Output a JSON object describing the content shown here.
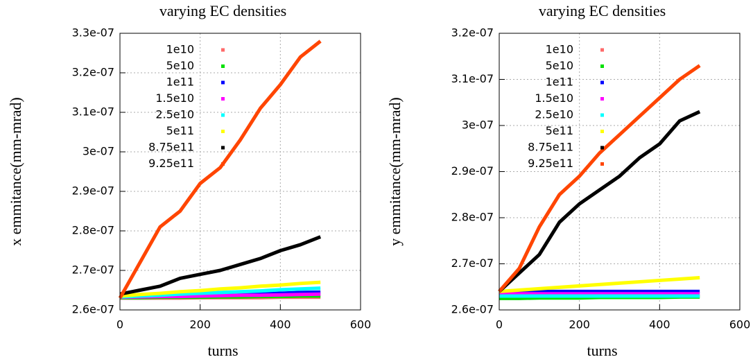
{
  "chart_data": [
    {
      "type": "line",
      "title": "varying EC densities",
      "xlabel": "turns",
      "ylabel": "x emmitance(mm-mrad)",
      "x": [
        0,
        50,
        100,
        150,
        200,
        250,
        300,
        350,
        400,
        450,
        500
      ],
      "xlim": [
        0,
        600
      ],
      "xticks": [
        0,
        200,
        400,
        600
      ],
      "ylim": [
        2.6e-07,
        3.3e-07
      ],
      "yticks": [
        {
          "value": 2.6e-07,
          "label": "2.6e-07"
        },
        {
          "value": 2.7e-07,
          "label": "2.7e-07"
        },
        {
          "value": 2.8e-07,
          "label": "2.8e-07"
        },
        {
          "value": 2.9e-07,
          "label": "2.9e-07"
        },
        {
          "value": 3e-07,
          "label": "3e-07"
        },
        {
          "value": 3.1e-07,
          "label": "3.1e-07"
        },
        {
          "value": 3.2e-07,
          "label": "3.2e-07"
        },
        {
          "value": 3.3e-07,
          "label": "3.3e-07"
        }
      ],
      "grid": true,
      "legend": "upper left",
      "series": [
        {
          "name": "1e10",
          "color": "#ff6a6a",
          "values": [
            2.63e-07,
            2.63e-07,
            2.63e-07,
            2.63e-07,
            2.631e-07,
            2.631e-07,
            2.631e-07,
            2.631e-07,
            2.632e-07,
            2.632e-07,
            2.632e-07
          ]
        },
        {
          "name": "5e10",
          "color": "#00e000",
          "values": [
            2.631e-07,
            2.631e-07,
            2.632e-07,
            2.632e-07,
            2.632e-07,
            2.633e-07,
            2.633e-07,
            2.634e-07,
            2.634e-07,
            2.635e-07,
            2.635e-07
          ]
        },
        {
          "name": "1e11",
          "color": "#0000ff",
          "values": [
            2.633e-07,
            2.634e-07,
            2.635e-07,
            2.636e-07,
            2.638e-07,
            2.639e-07,
            2.64e-07,
            2.641e-07,
            2.642e-07,
            2.644e-07,
            2.645e-07
          ]
        },
        {
          "name": "1.5e10",
          "color": "#ff00ff",
          "values": [
            2.632e-07,
            2.633e-07,
            2.634e-07,
            2.634e-07,
            2.635e-07,
            2.636e-07,
            2.637e-07,
            2.637e-07,
            2.638e-07,
            2.639e-07,
            2.64e-07
          ]
        },
        {
          "name": "2.5e10",
          "color": "#00ffff",
          "values": [
            2.633e-07,
            2.635e-07,
            2.637e-07,
            2.64e-07,
            2.642e-07,
            2.644e-07,
            2.646e-07,
            2.648e-07,
            2.651e-07,
            2.653e-07,
            2.655e-07
          ]
        },
        {
          "name": "5e11",
          "color": "#ffff00",
          "values": [
            2.635e-07,
            2.639e-07,
            2.642e-07,
            2.646e-07,
            2.649e-07,
            2.653e-07,
            2.656e-07,
            2.66e-07,
            2.663e-07,
            2.667e-07,
            2.67e-07
          ]
        },
        {
          "name": "8.75e11",
          "color": "#000000",
          "values": [
            2.64e-07,
            2.65e-07,
            2.66e-07,
            2.68e-07,
            2.69e-07,
            2.7e-07,
            2.715e-07,
            2.73e-07,
            2.75e-07,
            2.765e-07,
            2.785e-07
          ]
        },
        {
          "name": "9.25e11",
          "color": "#ff4500",
          "values": [
            2.63e-07,
            2.72e-07,
            2.81e-07,
            2.85e-07,
            2.92e-07,
            2.96e-07,
            3.03e-07,
            3.11e-07,
            3.17e-07,
            3.24e-07,
            3.28e-07
          ]
        }
      ]
    },
    {
      "type": "line",
      "title": "varying EC densities",
      "xlabel": "turns",
      "ylabel": "y emmitance(mm-mrad)",
      "x": [
        0,
        50,
        100,
        150,
        200,
        250,
        300,
        350,
        400,
        450,
        500
      ],
      "xlim": [
        0,
        600
      ],
      "xticks": [
        0,
        200,
        400,
        600
      ],
      "ylim": [
        2.6e-07,
        3.2e-07
      ],
      "yticks": [
        {
          "value": 2.6e-07,
          "label": "2.6e-07"
        },
        {
          "value": 2.7e-07,
          "label": "2.7e-07"
        },
        {
          "value": 2.8e-07,
          "label": "2.8e-07"
        },
        {
          "value": 2.9e-07,
          "label": "2.9e-07"
        },
        {
          "value": 3e-07,
          "label": "3e-07"
        },
        {
          "value": 3.1e-07,
          "label": "3.1e-07"
        },
        {
          "value": 3.2e-07,
          "label": "3.2e-07"
        }
      ],
      "grid": true,
      "legend": "upper left",
      "series": [
        {
          "name": "1e10",
          "color": "#ff6a6a",
          "values": [
            2.63e-07,
            2.63e-07,
            2.63e-07,
            2.63e-07,
            2.63e-07,
            2.63e-07,
            2.63e-07,
            2.63e-07,
            2.63e-07,
            2.63e-07,
            2.63e-07
          ]
        },
        {
          "name": "5e10",
          "color": "#00e000",
          "values": [
            2.625e-07,
            2.625e-07,
            2.626e-07,
            2.626e-07,
            2.626e-07,
            2.627e-07,
            2.627e-07,
            2.627e-07,
            2.627e-07,
            2.628e-07,
            2.628e-07
          ]
        },
        {
          "name": "1e11",
          "color": "#0000ff",
          "values": [
            2.64e-07,
            2.64e-07,
            2.64e-07,
            2.64e-07,
            2.64e-07,
            2.64e-07,
            2.64e-07,
            2.64e-07,
            2.64e-07,
            2.64e-07,
            2.64e-07
          ]
        },
        {
          "name": "1.5e10",
          "color": "#ff00ff",
          "values": [
            2.635e-07,
            2.635e-07,
            2.635e-07,
            2.635e-07,
            2.635e-07,
            2.635e-07,
            2.635e-07,
            2.635e-07,
            2.635e-07,
            2.635e-07,
            2.635e-07
          ]
        },
        {
          "name": "2.5e10",
          "color": "#00ffff",
          "values": [
            2.63e-07,
            2.63e-07,
            2.63e-07,
            2.63e-07,
            2.63e-07,
            2.63e-07,
            2.63e-07,
            2.63e-07,
            2.63e-07,
            2.63e-07,
            2.63e-07
          ]
        },
        {
          "name": "5e11",
          "color": "#ffff00",
          "values": [
            2.64e-07,
            2.643e-07,
            2.646e-07,
            2.649e-07,
            2.652e-07,
            2.655e-07,
            2.658e-07,
            2.661e-07,
            2.664e-07,
            2.667e-07,
            2.67e-07
          ]
        },
        {
          "name": "8.75e11",
          "color": "#000000",
          "values": [
            2.64e-07,
            2.68e-07,
            2.72e-07,
            2.79e-07,
            2.83e-07,
            2.86e-07,
            2.89e-07,
            2.93e-07,
            2.96e-07,
            3.01e-07,
            3.03e-07
          ]
        },
        {
          "name": "9.25e11",
          "color": "#ff4500",
          "values": [
            2.64e-07,
            2.69e-07,
            2.78e-07,
            2.85e-07,
            2.89e-07,
            2.94e-07,
            2.98e-07,
            3.02e-07,
            3.06e-07,
            3.1e-07,
            3.13e-07
          ]
        }
      ]
    }
  ]
}
